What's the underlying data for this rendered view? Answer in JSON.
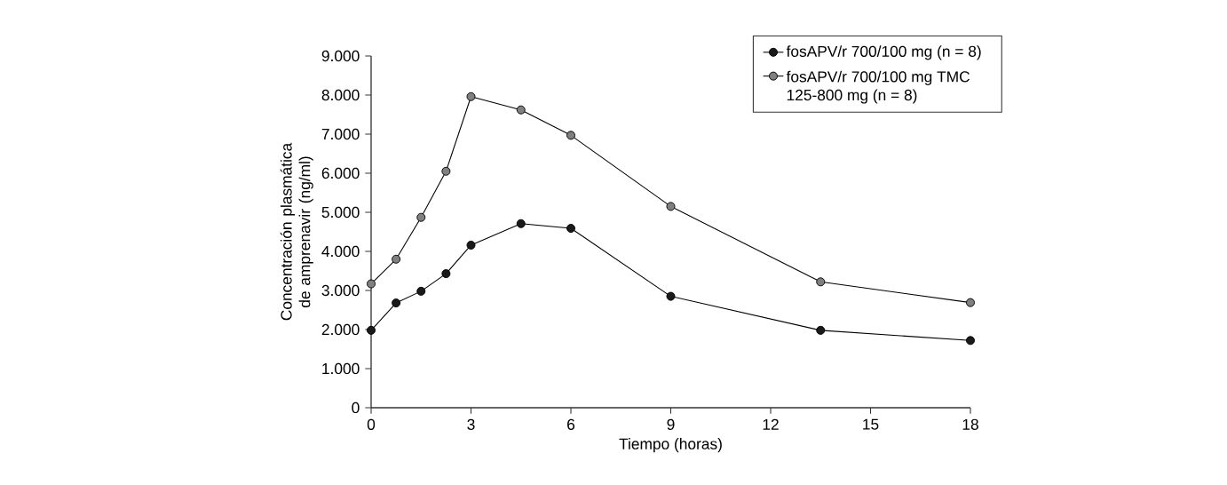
{
  "chart_data": {
    "type": "line",
    "xlabel": "Tiempo (horas)",
    "ylabel": "Concentración plasmática de amprenavir (ng/ml)",
    "xlim": [
      0,
      18
    ],
    "xticks": [
      0,
      3,
      6,
      9,
      12,
      15,
      18
    ],
    "ylim": [
      0,
      9000
    ],
    "yticks": [
      0,
      {
        "value": 1000,
        "label": "1.000"
      },
      {
        "value": 2000,
        "label": "2.000"
      },
      {
        "value": 3000,
        "label": "3.000"
      },
      {
        "value": 4000,
        "label": "4.000"
      },
      {
        "value": 5000,
        "label": "5.000"
      },
      {
        "value": 6000,
        "label": "6.000"
      },
      {
        "value": 7000,
        "label": "7.000"
      },
      {
        "value": 8000,
        "label": "8.000"
      },
      {
        "value": 9000,
        "label": "9.000"
      }
    ],
    "x": [
      0,
      0.75,
      1.5,
      2.25,
      3,
      4.5,
      6,
      9,
      13.5,
      18
    ],
    "series": [
      {
        "name": "fosAPV/r 700/100 mg (n = 8)",
        "color": "#1a1a1a",
        "values": [
          1980,
          2680,
          2980,
          3430,
          4160,
          4710,
          4590,
          2850,
          1980,
          1720
        ]
      },
      {
        "name": "fosAPV/r 700/100 mg TMC 125-800 mg (n = 8)",
        "color": "#808080",
        "values": [
          3170,
          3800,
          4870,
          6050,
          7960,
          7620,
          6970,
          5150,
          3220,
          2690
        ]
      }
    ],
    "marker": "circle",
    "line_style": "solid",
    "legend": "top right",
    "grid": false
  }
}
